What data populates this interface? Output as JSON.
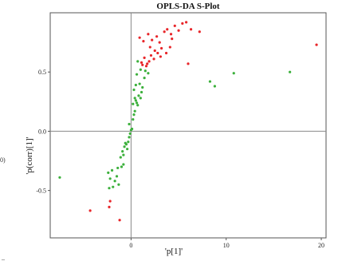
{
  "left_fragment": {
    "text_a": "0)",
    "text_b": "_"
  },
  "chart_data": {
    "type": "scatter",
    "title": "OPLS-DA S-Plot",
    "xlabel": "'p[1]'",
    "ylabel": "'p(corr)[1]'",
    "xlim": [
      -8.5,
      20.5
    ],
    "ylim": [
      -0.9,
      1.0
    ],
    "x_ticks": [
      0,
      10,
      20
    ],
    "y_ticks": [
      0.5,
      0.0,
      -0.5
    ],
    "x_tick_labels": [
      "0",
      "10",
      "20"
    ],
    "y_tick_labels": [
      "0.5",
      "0.0",
      "-0.5"
    ],
    "gridlines": false,
    "zero_lines": true,
    "zero_line_color": "#8a8a8a",
    "colors": {
      "red": "#e8262a",
      "green": "#3cb03c",
      "frame": "#555555"
    },
    "series": [
      {
        "color": "red",
        "points": [
          [
            0.9,
            0.79
          ],
          [
            1.3,
            0.76
          ],
          [
            1.8,
            0.82
          ],
          [
            2.2,
            0.77
          ],
          [
            2.7,
            0.8
          ],
          [
            3.0,
            0.75
          ],
          [
            3.5,
            0.84
          ],
          [
            3.8,
            0.86
          ],
          [
            4.2,
            0.82
          ],
          [
            4.6,
            0.89
          ],
          [
            5.0,
            0.85
          ],
          [
            5.4,
            0.91
          ],
          [
            5.8,
            0.92
          ],
          [
            6.3,
            0.86
          ],
          [
            7.2,
            0.84
          ],
          [
            19.5,
            0.73
          ],
          [
            2.0,
            0.71
          ],
          [
            2.5,
            0.68
          ],
          [
            3.2,
            0.7
          ],
          [
            3.7,
            0.66
          ],
          [
            4.1,
            0.71
          ],
          [
            4.3,
            0.78
          ],
          [
            1.1,
            0.58
          ],
          [
            1.4,
            0.62
          ],
          [
            1.6,
            0.55
          ],
          [
            1.9,
            0.59
          ],
          [
            2.1,
            0.64
          ],
          [
            2.4,
            0.61
          ],
          [
            2.8,
            0.66
          ],
          [
            3.1,
            0.63
          ],
          [
            1.2,
            0.56
          ],
          [
            1.7,
            0.57
          ],
          [
            6.0,
            0.57
          ],
          [
            -4.3,
            -0.67
          ],
          [
            -2.2,
            -0.59
          ],
          [
            -2.3,
            -0.64
          ],
          [
            -1.2,
            -0.75
          ]
        ]
      },
      {
        "color": "green",
        "points": [
          [
            -7.5,
            -0.39
          ],
          [
            -2.4,
            -0.35
          ],
          [
            -2.2,
            -0.4
          ],
          [
            -1.9,
            -0.47
          ],
          [
            -2.0,
            -0.33
          ],
          [
            -1.7,
            -0.42
          ],
          [
            -1.5,
            -0.38
          ],
          [
            -1.3,
            -0.45
          ],
          [
            -2.3,
            -0.48
          ],
          [
            -1.0,
            -0.3
          ],
          [
            -0.8,
            -0.28
          ],
          [
            -1.4,
            -0.31
          ],
          [
            -0.9,
            -0.17
          ],
          [
            -0.7,
            -0.13
          ],
          [
            -0.5,
            -0.11
          ],
          [
            -0.4,
            -0.15
          ],
          [
            -0.6,
            -0.1
          ],
          [
            -0.3,
            -0.09
          ],
          [
            -0.8,
            -0.2
          ],
          [
            -1.1,
            -0.22
          ],
          [
            -0.2,
            -0.05
          ],
          [
            -0.1,
            -0.02
          ],
          [
            0.0,
            0.01
          ],
          [
            0.1,
            0.02
          ],
          [
            0.2,
            0.1
          ],
          [
            0.3,
            0.14
          ],
          [
            0.4,
            0.17
          ],
          [
            0.2,
            0.23
          ],
          [
            0.5,
            0.26
          ],
          [
            0.6,
            0.24
          ],
          [
            0.8,
            0.3
          ],
          [
            1.0,
            0.28
          ],
          [
            0.3,
            0.35
          ],
          [
            0.5,
            0.39
          ],
          [
            0.9,
            0.4
          ],
          [
            1.2,
            0.37
          ],
          [
            1.4,
            0.45
          ],
          [
            0.6,
            0.48
          ],
          [
            1.0,
            0.52
          ],
          [
            1.5,
            0.51
          ],
          [
            1.8,
            0.49
          ],
          [
            0.7,
            0.59
          ],
          [
            8.3,
            0.42
          ],
          [
            8.8,
            0.38
          ],
          [
            10.8,
            0.49
          ],
          [
            16.7,
            0.5
          ],
          [
            1.1,
            0.33
          ],
          [
            0.4,
            0.28
          ],
          [
            0.7,
            0.22
          ],
          [
            -0.2,
            0.06
          ]
        ]
      }
    ]
  }
}
